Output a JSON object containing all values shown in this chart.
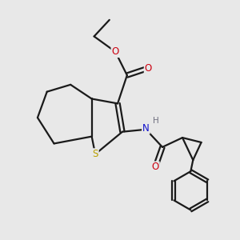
{
  "background_color": "#e8e8e8",
  "bond_color": "#1a1a1a",
  "sulfur_color": "#b8a000",
  "nitrogen_color": "#1010cc",
  "oxygen_color": "#cc0010",
  "hydrogen_color": "#707080",
  "line_width": 1.6,
  "figsize": [
    3.0,
    3.0
  ],
  "dpi": 100,
  "xlim": [
    0,
    10
  ],
  "ylim": [
    0,
    10
  ]
}
